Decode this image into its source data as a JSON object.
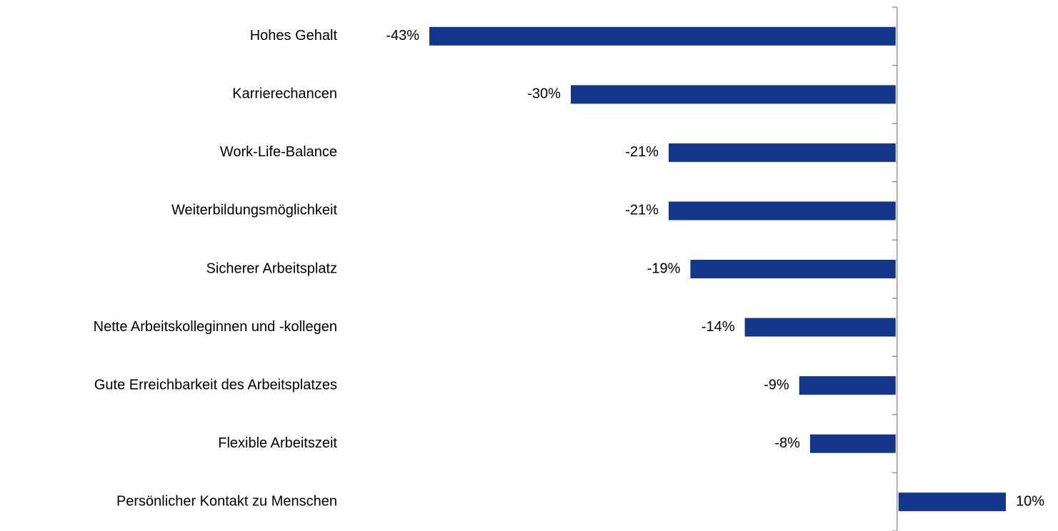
{
  "chart_data": {
    "type": "barh",
    "categories": [
      "Hohes Gehalt",
      "Karrierechancen",
      "Work-Life-Balance",
      "Weiterbildungsmöglichkeit",
      "Sicherer Arbeitsplatz",
      "Nette Arbeitskolleginnen und -kollegen",
      "Gute Erreichbarkeit des Arbeitsplatzes",
      "Flexible Arbeitszeit",
      "Persönlicher Kontakt zu Menschen"
    ],
    "values": [
      -43,
      -30,
      -21,
      -21,
      -19,
      -14,
      -9,
      -8,
      10
    ],
    "value_labels": [
      "-43%",
      "-30%",
      "-21%",
      "-21%",
      "-19%",
      "-14%",
      "-9%",
      "-8%",
      "10%"
    ],
    "color": "#13368a"
  }
}
